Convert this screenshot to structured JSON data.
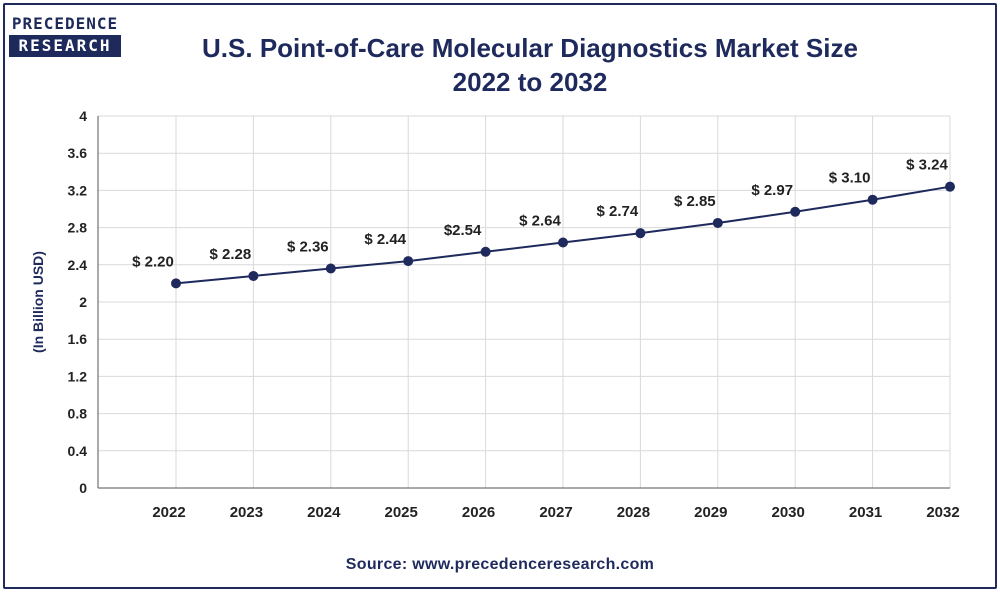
{
  "logo": {
    "line1": "PRECEDENCE",
    "line2": "RESEARCH"
  },
  "header": {
    "title_line1": "U.S. Point-of-Care Molecular Diagnostics Market Size",
    "title_line2": "2022 to 2032"
  },
  "footer": {
    "source": "Source: www.precedenceresearch.com"
  },
  "colors": {
    "primary": "#1f2a5c",
    "grid": "#d9d9d9",
    "text": "#222222"
  },
  "chart_data": {
    "type": "line",
    "title": "U.S. Point-of-Care Molecular Diagnostics Market Size 2022 to 2032",
    "xlabel": "",
    "ylabel": "(In Billion USD)",
    "categories": [
      "2022",
      "2023",
      "2024",
      "2025",
      "2026",
      "2027",
      "2028",
      "2029",
      "2030",
      "2031",
      "2032"
    ],
    "values": [
      2.2,
      2.28,
      2.36,
      2.44,
      2.54,
      2.64,
      2.74,
      2.85,
      2.97,
      3.1,
      3.24
    ],
    "data_labels": [
      "$ 2.20",
      "$ 2.28",
      "$ 2.36",
      "$ 2.44",
      "$2.54",
      "$ 2.64",
      "$ 2.74",
      "$ 2.85",
      "$ 2.97",
      "$ 3.10",
      "$ 3.24"
    ],
    "ylim": [
      0,
      4
    ],
    "yticks": [
      "0",
      "0.4",
      "0.8",
      "1.2",
      "1.6",
      "2",
      "2.4",
      "2.8",
      "3.2",
      "3.6",
      "4"
    ],
    "grid": true,
    "legend": "none"
  }
}
